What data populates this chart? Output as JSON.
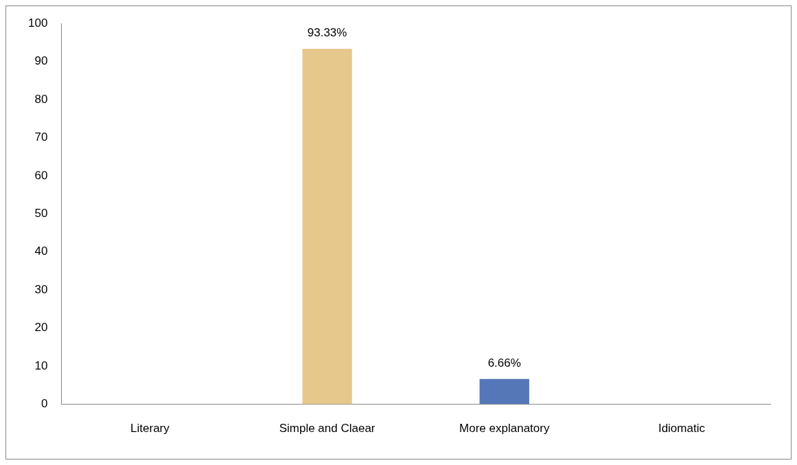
{
  "chart_data": {
    "type": "bar",
    "categories": [
      "Literary",
      "Simple and Claear",
      "More explanatory",
      "Idiomatic"
    ],
    "values": [
      0,
      93.33,
      6.66,
      0
    ],
    "colors": [
      "#e6c88c",
      "#e6c88c",
      "#5577b8",
      "#5577b8"
    ],
    "value_labels": [
      null,
      "93.33%",
      "6.66%",
      null
    ],
    "ylim": [
      0,
      100
    ],
    "yticks": [
      0,
      10,
      20,
      30,
      40,
      50,
      60,
      70,
      80,
      90,
      100
    ],
    "grid": false,
    "legend": false
  }
}
